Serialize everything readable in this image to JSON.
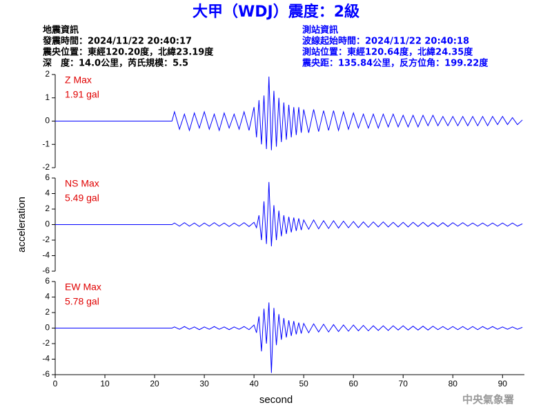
{
  "header": {
    "title": "大甲（WDJ）震度：2級",
    "left": [
      "地震資訊",
      "發震時間：2024/11/22 20:40:17",
      "震央位置：東經120.20度，北緯23.19度",
      "深　度：14.0公里，芮氏規模：5.5"
    ],
    "right": [
      "測站資訊",
      "波線起始時間：2024/11/22 20:40:18",
      "測站位置：東經120.64度，北緯24.35度",
      "震央距：135.84公里，反方位角：199.22度"
    ]
  },
  "footer": "中央氣象署",
  "chart_data": [
    {
      "type": "line",
      "annotations": [
        "Z Max",
        "1.91 gal"
      ],
      "annotation_color": "#e00000",
      "color": "#0000ff",
      "ylim": [
        -2,
        2
      ],
      "yticks": [
        2,
        1,
        0,
        -1,
        -2
      ],
      "xlim": [
        0,
        94.4
      ],
      "x": [
        0,
        23.5,
        24,
        25,
        26,
        27,
        28,
        29,
        30,
        31,
        32,
        33,
        34,
        35,
        36,
        37,
        38,
        39,
        40,
        40.5,
        41,
        41.5,
        42,
        42.5,
        43,
        43.5,
        44,
        44.5,
        45,
        45.5,
        46,
        46.5,
        47,
        47.5,
        48,
        48.5,
        49,
        49.5,
        50,
        51,
        52,
        53,
        54,
        55,
        56,
        57,
        58,
        59,
        60,
        61,
        62,
        63,
        64,
        65,
        66,
        67,
        68,
        69,
        70,
        71,
        72,
        73,
        74,
        75,
        76,
        77,
        78,
        79,
        80,
        81,
        82,
        83,
        84,
        85,
        86,
        87,
        88,
        89,
        90,
        91,
        92,
        93,
        94
      ],
      "values": [
        0,
        0,
        0.4,
        -0.35,
        0.3,
        -0.4,
        0.35,
        -0.3,
        0.4,
        -0.35,
        0.3,
        -0.4,
        0.35,
        -0.3,
        0.3,
        -0.35,
        0.4,
        -0.4,
        0.6,
        -0.7,
        0.9,
        -1.0,
        1.1,
        -1.2,
        1.91,
        -1.25,
        1.3,
        -1.1,
        1.0,
        -0.9,
        0.8,
        -0.8,
        0.7,
        -0.7,
        0.6,
        -0.6,
        0.6,
        -0.5,
        0.5,
        -0.5,
        0.5,
        -0.45,
        0.45,
        -0.4,
        0.45,
        -0.4,
        0.4,
        -0.35,
        0.35,
        -0.3,
        0.3,
        -0.3,
        0.3,
        -0.3,
        0.3,
        -0.25,
        0.3,
        -0.25,
        0.25,
        -0.25,
        0.25,
        -0.25,
        0.25,
        -0.2,
        0.25,
        -0.2,
        0.2,
        -0.2,
        0.2,
        -0.2,
        0.2,
        -0.2,
        0.2,
        -0.2,
        0.2,
        -0.2,
        0.2,
        -0.15,
        0.2,
        -0.15,
        0.15,
        -0.15,
        0.05
      ]
    },
    {
      "type": "line",
      "annotations": [
        "NS Max",
        "5.49 gal"
      ],
      "annotation_color": "#e00000",
      "color": "#0000ff",
      "ylabel": "acceleration",
      "ylim": [
        -6,
        6
      ],
      "yticks": [
        6,
        4,
        2,
        0,
        -2,
        -4,
        -6
      ],
      "xlim": [
        0,
        94.4
      ],
      "x": [
        0,
        23.5,
        24,
        25,
        26,
        27,
        28,
        29,
        30,
        31,
        32,
        33,
        34,
        35,
        36,
        37,
        38,
        39,
        40,
        40.5,
        41,
        41.5,
        42,
        42.5,
        43,
        43.5,
        44,
        44.5,
        45,
        45.5,
        46,
        46.5,
        47,
        47.5,
        48,
        48.5,
        49,
        49.5,
        50,
        51,
        52,
        53,
        54,
        55,
        56,
        57,
        58,
        59,
        60,
        61,
        62,
        63,
        64,
        65,
        66,
        67,
        68,
        69,
        70,
        71,
        72,
        73,
        74,
        75,
        76,
        77,
        78,
        79,
        80,
        81,
        82,
        83,
        84,
        85,
        86,
        87,
        88,
        89,
        90,
        91,
        92,
        93,
        94
      ],
      "values": [
        0,
        0,
        0.2,
        -0.2,
        0.25,
        -0.2,
        0.2,
        -0.25,
        0.2,
        -0.2,
        0.25,
        -0.2,
        0.2,
        -0.25,
        0.2,
        -0.2,
        0.25,
        -0.25,
        0.3,
        -0.4,
        1.2,
        -2.0,
        3.0,
        -2.5,
        5.49,
        -2.8,
        2.5,
        -2.0,
        1.8,
        -1.5,
        1.2,
        -1.2,
        1.0,
        -1.0,
        0.9,
        -0.8,
        0.8,
        -0.7,
        0.6,
        -0.6,
        0.6,
        -0.55,
        0.5,
        -0.5,
        0.5,
        -0.45,
        0.45,
        -0.4,
        0.4,
        -0.4,
        0.35,
        -0.35,
        0.35,
        -0.3,
        0.35,
        -0.3,
        0.3,
        -0.3,
        0.3,
        -0.3,
        0.3,
        -0.25,
        0.3,
        -0.25,
        0.25,
        -0.25,
        0.25,
        -0.25,
        0.25,
        -0.2,
        0.25,
        -0.2,
        0.2,
        -0.2,
        0.2,
        -0.2,
        0.2,
        -0.2,
        0.2,
        -0.2,
        0.2,
        -0.2,
        0.1
      ]
    },
    {
      "type": "line",
      "annotations": [
        "EW Max",
        "5.78 gal"
      ],
      "annotation_color": "#e00000",
      "color": "#0000ff",
      "xlabel": "second",
      "ylim": [
        -6,
        6
      ],
      "yticks": [
        6,
        4,
        2,
        0,
        -2,
        -4,
        -6
      ],
      "xlim": [
        0,
        94.4
      ],
      "xticks": [
        0,
        10,
        20,
        30,
        40,
        50,
        60,
        70,
        80,
        90
      ],
      "x": [
        0,
        23.5,
        24,
        25,
        26,
        27,
        28,
        29,
        30,
        31,
        32,
        33,
        34,
        35,
        36,
        37,
        38,
        39,
        40,
        40.5,
        41,
        41.5,
        42,
        42.5,
        43,
        43.5,
        44,
        44.5,
        45,
        45.5,
        46,
        46.5,
        47,
        47.5,
        48,
        48.5,
        49,
        49.5,
        50,
        51,
        52,
        53,
        54,
        55,
        56,
        57,
        58,
        59,
        60,
        61,
        62,
        63,
        64,
        65,
        66,
        67,
        68,
        69,
        70,
        71,
        72,
        73,
        74,
        75,
        76,
        77,
        78,
        79,
        80,
        81,
        82,
        83,
        84,
        85,
        86,
        87,
        88,
        89,
        90,
        91,
        92,
        93,
        94
      ],
      "values": [
        0,
        0,
        0.15,
        -0.15,
        0.2,
        -0.15,
        0.15,
        -0.2,
        0.15,
        -0.15,
        0.2,
        -0.15,
        0.15,
        -0.2,
        0.15,
        -0.15,
        0.2,
        -0.2,
        0.4,
        -0.6,
        1.5,
        -3.0,
        2.5,
        -2.0,
        3.3,
        -5.78,
        2.6,
        -2.2,
        1.8,
        -1.5,
        1.3,
        -1.2,
        1.0,
        -1.0,
        0.9,
        -0.8,
        0.7,
        -0.7,
        0.6,
        -0.6,
        0.55,
        -0.5,
        0.5,
        -0.5,
        0.45,
        -0.45,
        0.4,
        -0.4,
        0.4,
        -0.35,
        0.35,
        -0.35,
        0.3,
        -0.3,
        0.3,
        -0.3,
        0.3,
        -0.25,
        0.3,
        -0.25,
        0.25,
        -0.25,
        0.25,
        -0.25,
        0.25,
        -0.2,
        0.2,
        -0.2,
        0.2,
        -0.2,
        0.2,
        -0.2,
        0.2,
        -0.2,
        0.2,
        -0.15,
        0.2,
        -0.15,
        0.15,
        -0.15,
        0.15,
        -0.15,
        0.1
      ]
    }
  ]
}
